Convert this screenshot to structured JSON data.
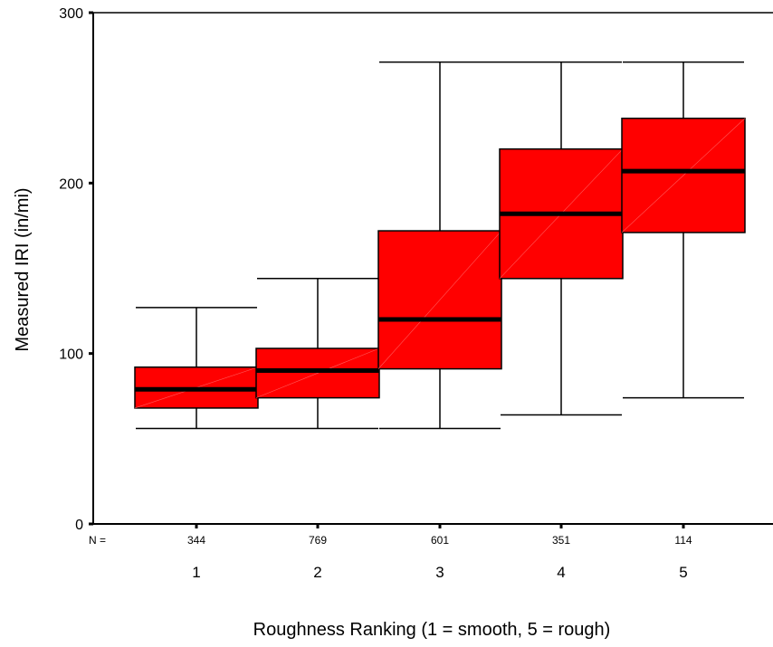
{
  "chart_data": {
    "type": "boxplot",
    "xlabel": "Roughness Ranking (1 = smooth, 5 = rough)",
    "ylabel": "Measured IRI (in/mi)",
    "ylim": [
      0,
      300
    ],
    "yticks": [
      0,
      100,
      200,
      300
    ],
    "categories": [
      "1",
      "2",
      "3",
      "4",
      "5"
    ],
    "n_prefix": "N =",
    "n_values": [
      "344",
      "769",
      "601",
      "351",
      "114"
    ],
    "boxes": [
      {
        "category": "1",
        "min": 56,
        "q1": 68,
        "median": 79,
        "q3": 92,
        "max": 127
      },
      {
        "category": "2",
        "min": 56,
        "q1": 74,
        "median": 90,
        "q3": 103,
        "max": 144
      },
      {
        "category": "3",
        "min": 56,
        "q1": 91,
        "median": 120,
        "q3": 172,
        "max": 271
      },
      {
        "category": "4",
        "min": 64,
        "q1": 144,
        "median": 182,
        "q3": 220,
        "max": 271
      },
      {
        "category": "5",
        "min": 74,
        "q1": 171,
        "median": 207,
        "q3": 238,
        "max": 271
      }
    ],
    "box_color": "#ff0000",
    "grid": false
  }
}
